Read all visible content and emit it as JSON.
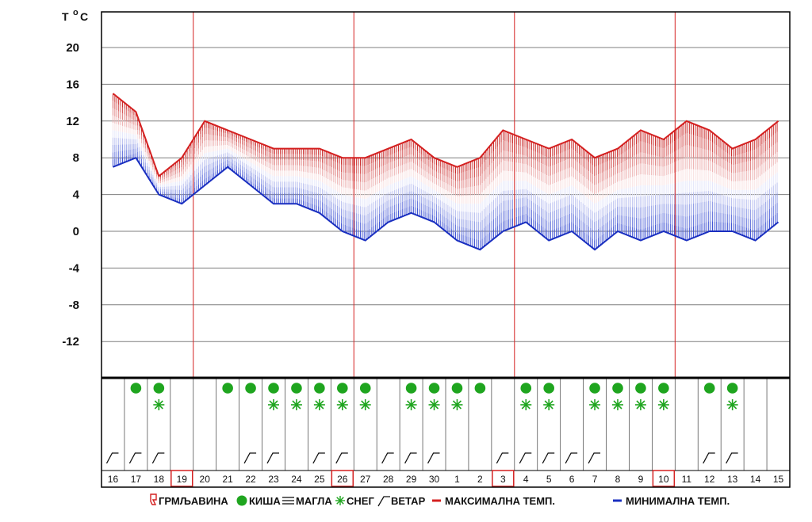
{
  "chart_data": {
    "type": "line",
    "title": "",
    "ylabel_parts": {
      "t": "T",
      "deg": "o",
      "c": "C"
    },
    "ylim": [
      -16,
      24
    ],
    "yticks": [
      20,
      16,
      12,
      8,
      4,
      0,
      -4,
      -8,
      -12
    ],
    "x": [
      "16",
      "17",
      "18",
      "19",
      "20",
      "21",
      "22",
      "23",
      "24",
      "25",
      "26",
      "27",
      "28",
      "29",
      "30",
      "1",
      "2",
      "3",
      "4",
      "5",
      "6",
      "7",
      "8",
      "9",
      "10",
      "11",
      "12",
      "13",
      "14",
      "15"
    ],
    "highlighted_days": [
      "19",
      "26",
      "3",
      "10"
    ],
    "grid": true,
    "series": [
      {
        "name": "МАКСИМАЛНА ТЕМП.",
        "color": "#d42020",
        "values": [
          15,
          13,
          6,
          8,
          12,
          11,
          10,
          9,
          9,
          9,
          8,
          8,
          9,
          10,
          8,
          7,
          8,
          11,
          10,
          9,
          10,
          8,
          9,
          11,
          10,
          12,
          11,
          9,
          10,
          12
        ]
      },
      {
        "name": "МИНИМАЛНА ТЕМП.",
        "color": "#1a2fc0",
        "values": [
          7,
          8,
          4,
          3,
          5,
          7,
          5,
          3,
          3,
          2,
          0,
          -1,
          1,
          2,
          1,
          -1,
          -2,
          0,
          1,
          -1,
          0,
          -2,
          0,
          -1,
          0,
          -1,
          0,
          0,
          -1,
          1
        ]
      }
    ],
    "rain": [
      false,
      true,
      true,
      false,
      false,
      true,
      true,
      true,
      true,
      true,
      true,
      true,
      false,
      true,
      true,
      true,
      true,
      false,
      true,
      true,
      false,
      true,
      true,
      true,
      true,
      false,
      true,
      true,
      false,
      false
    ],
    "snow": [
      false,
      false,
      true,
      false,
      false,
      false,
      false,
      true,
      true,
      true,
      true,
      true,
      false,
      true,
      true,
      true,
      false,
      false,
      true,
      true,
      false,
      true,
      true,
      true,
      true,
      false,
      false,
      true,
      false,
      false
    ],
    "wind": [
      true,
      true,
      true,
      false,
      false,
      false,
      true,
      true,
      false,
      true,
      true,
      false,
      true,
      true,
      true,
      false,
      false,
      true,
      true,
      true,
      true,
      true,
      false,
      false,
      false,
      false,
      true,
      true,
      false,
      false
    ]
  },
  "legend": {
    "thunderstorm": "ГРМЉАВИНА",
    "rain": "КИША",
    "fog": "МАГЛА",
    "snow": "СНЕГ",
    "wind": "ВЕТАР",
    "max_temp": "МАКСИМАЛНА ТЕМП.",
    "min_temp": "МИНИМАЛНА ТЕМП."
  },
  "colors": {
    "max_line": "#d42020",
    "min_line": "#1a2fc0",
    "rain_dot": "#1fa51f",
    "snow_star": "#1fa51f",
    "grid": "#7f7f7f",
    "week_line": "#d42020",
    "highlight_box": "#d42020"
  }
}
